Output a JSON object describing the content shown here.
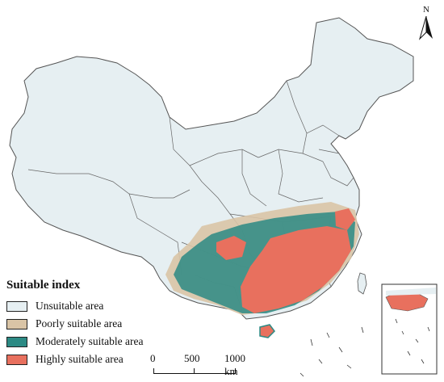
{
  "legend": {
    "title": "Suitable index",
    "items": [
      {
        "label": "Unsuitable area",
        "color": "#e6eff2"
      },
      {
        "label": "Poorly suitable area",
        "color": "#d9c4a6"
      },
      {
        "label": "Moderately suitable area",
        "color": "#2c8a84"
      },
      {
        "label": "Highly suitable area",
        "color": "#e8705e"
      }
    ]
  },
  "scale_bar": {
    "labels": [
      "0",
      "500",
      "1000 km"
    ]
  },
  "north_arrow": {
    "label": "N"
  },
  "colors": {
    "border": "#555555",
    "sea_islands": "#333333"
  }
}
